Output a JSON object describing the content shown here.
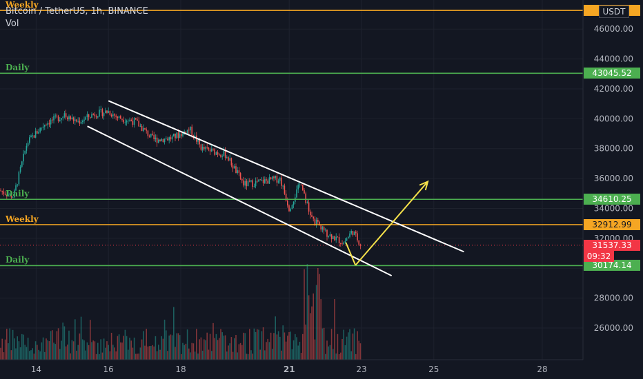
{
  "header": {
    "symbol_line": "Bitcoin / TetherUS, 1h, BINANCE",
    "volume_label": "Vol"
  },
  "currency": "USDT",
  "colors": {
    "background": "#131722",
    "grid": "#1e222d",
    "axis_text": "#b2b5be",
    "up_candle": "#26a69a",
    "down_candle": "#ef5350",
    "weekly_level": "#f5a623",
    "daily_level": "#4caf50",
    "channel": "#ffffff",
    "projection_arrow": "#f5e14a",
    "current_price": "#f23645"
  },
  "price_axis": {
    "ticks": [
      "46000.00",
      "44000.00",
      "42000.00",
      "40000.00",
      "38000.00",
      "36000.00",
      "34000.00",
      "32000.00",
      "28000.00",
      "26000.00"
    ]
  },
  "time_axis": {
    "ticks": [
      "14",
      "16",
      "18",
      "21",
      "23",
      "25",
      "28"
    ]
  },
  "levels": [
    {
      "label": "Weekly",
      "price_label": "4...7",
      "color": "weekly"
    },
    {
      "label": "Daily",
      "price_label": "43045.52",
      "color": "daily"
    },
    {
      "label": "Daily",
      "price_label": "34610.25",
      "color": "daily"
    },
    {
      "label": "Weekly",
      "price_label": "32912.99",
      "color": "weekly"
    },
    {
      "label": "Daily",
      "price_label": "30174.14",
      "color": "daily"
    }
  ],
  "current_price": {
    "value": "31537.33",
    "countdown": "09:32"
  },
  "chart_data": {
    "type": "candlestick",
    "ylim": [
      24800,
      47300
    ],
    "grid": true,
    "horizontal_levels": [
      {
        "name": "Weekly",
        "value": 47250
      },
      {
        "name": "Daily",
        "value": 43045.52
      },
      {
        "name": "Daily",
        "value": 34610.25
      },
      {
        "name": "Weekly",
        "value": 32912.99
      },
      {
        "name": "Daily",
        "value": 30174.14
      }
    ],
    "current_price": 31537.33,
    "x_range": [
      "Jan 13",
      "Jan 29"
    ],
    "price_path": [
      [
        "Jan 13 00:00",
        35200
      ],
      [
        "Jan 13 09:00",
        34800
      ],
      [
        "Jan 13 18:00",
        38400
      ],
      [
        "Jan 14 06:00",
        39700
      ],
      [
        "Jan 14 18:00",
        40200
      ],
      [
        "Jan 15 04:00",
        39800
      ],
      [
        "Jan 15 14:00",
        40300
      ],
      [
        "Jan 16 00:00",
        40500
      ],
      [
        "Jan 16 06:00",
        40100
      ],
      [
        "Jan 16 18:00",
        39800
      ],
      [
        "Jan 17 06:00",
        38600
      ],
      [
        "Jan 17 18:00",
        38700
      ],
      [
        "Jan 18 06:00",
        39300
      ],
      [
        "Jan 18 14:00",
        38000
      ],
      [
        "Jan 19 06:00",
        37600
      ],
      [
        "Jan 19 18:00",
        35600
      ],
      [
        "Jan 20 06:00",
        35800
      ],
      [
        "Jan 20 18:00",
        36000
      ],
      [
        "Jan 21 00:00",
        34000
      ],
      [
        "Jan 21 08:00",
        35800
      ],
      [
        "Jan 21 14:00",
        33400
      ],
      [
        "Jan 22 00:00",
        32400
      ],
      [
        "Jan 22 12:00",
        31700
      ],
      [
        "Jan 22 18:00",
        32500
      ],
      [
        "Jan 23 00:00",
        31500
      ]
    ],
    "channel": {
      "upper": [
        [
          "Jan 16 00:00",
          41200
        ],
        [
          "Jan 25 20:00",
          31100
        ]
      ],
      "lower": [
        [
          "Jan 15 10:00",
          39500
        ],
        [
          "Jan 23 20:00",
          29500
        ]
      ]
    },
    "projection": [
      [
        "Jan 22 20:00",
        30200
      ],
      [
        "Jan 24 20:00",
        35800
      ]
    ],
    "volume_note": "volume histogram under price; spike near Jan 21-22"
  }
}
